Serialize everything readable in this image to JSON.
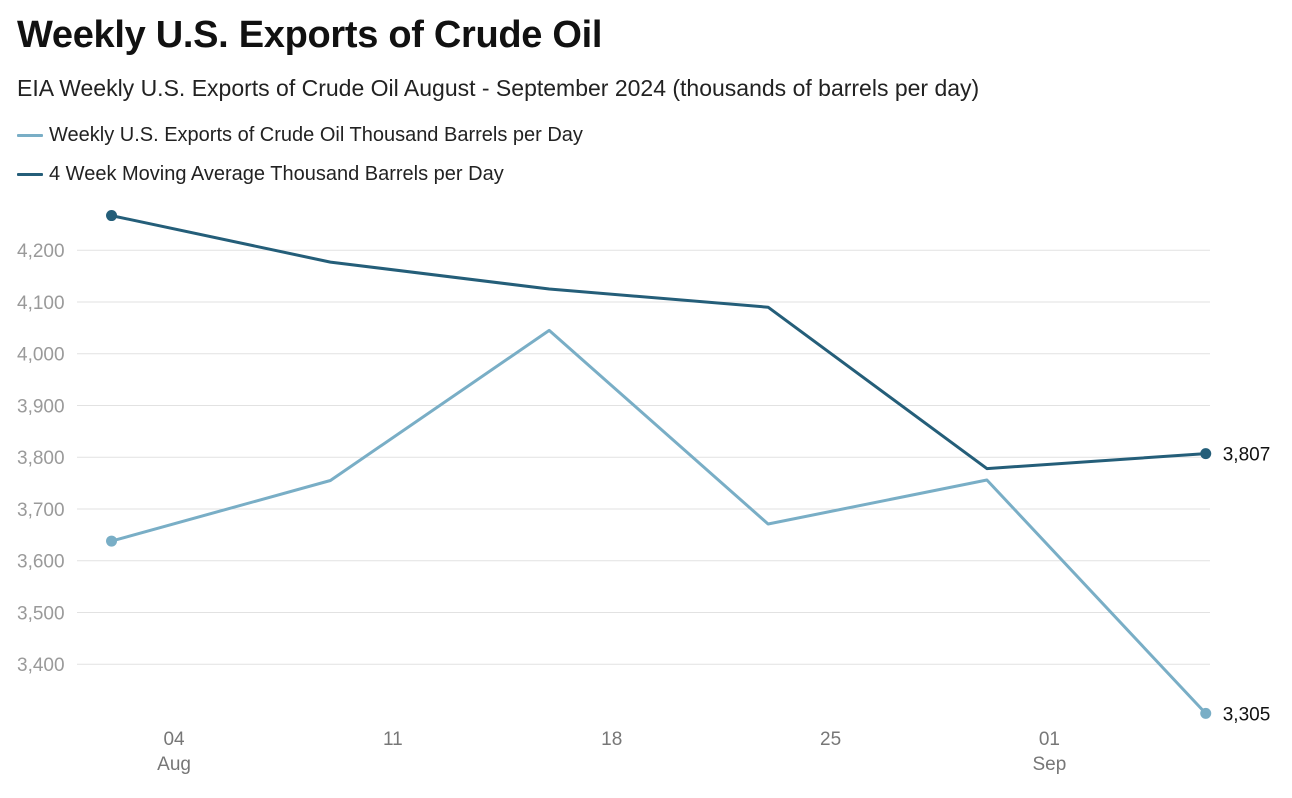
{
  "title": "Weekly U.S. Exports of Crude Oil",
  "subtitle": "EIA Weekly U.S. Exports of Crude Oil August - September 2024 (thousands of barrels per day)",
  "colors": {
    "weekly": "#79aec6",
    "average": "#245e79",
    "grid": "#e2e2e2"
  },
  "chart_data": {
    "type": "line",
    "x": [
      "2024-08-02",
      "2024-08-09",
      "2024-08-16",
      "2024-08-23",
      "2024-08-30",
      "2024-09-06"
    ],
    "x_ticks": [
      {
        "date": "2024-08-04",
        "label": "04",
        "sublabel": "Aug"
      },
      {
        "date": "2024-08-11",
        "label": "11",
        "sublabel": ""
      },
      {
        "date": "2024-08-18",
        "label": "18",
        "sublabel": ""
      },
      {
        "date": "2024-08-25",
        "label": "25",
        "sublabel": ""
      },
      {
        "date": "2024-09-01",
        "label": "01",
        "sublabel": "Sep"
      }
    ],
    "xlim": [
      "2024-07-31",
      "2024-09-07"
    ],
    "ylim": [
      3300,
      4270
    ],
    "y_ticks": [
      3400,
      3500,
      3600,
      3700,
      3800,
      3900,
      4000,
      4100,
      4200
    ],
    "y_tick_labels": [
      "3,400",
      "3,500",
      "3,600",
      "3,700",
      "3,800",
      "3,900",
      "4,000",
      "4,100",
      "4,200"
    ],
    "grid": true,
    "legend": "top-left",
    "series": [
      {
        "name": "Weekly U.S. Exports of Crude Oil Thousand Barrels per Day",
        "values": [
          3638,
          3755,
          4045,
          3671,
          3756,
          3305
        ],
        "end_label": "3,305"
      },
      {
        "name": "4 Week Moving Average Thousand Barrels per Day",
        "values": [
          4267,
          4177,
          4125,
          4090,
          3778,
          3807
        ],
        "end_label": "3,807"
      }
    ]
  }
}
